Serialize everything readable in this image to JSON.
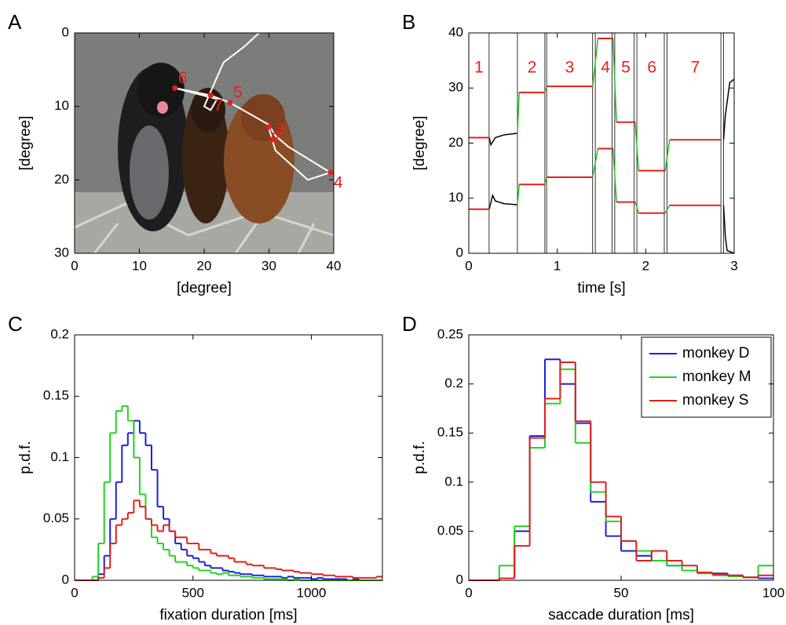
{
  "chart_data": [
    {
      "type": "image",
      "panel": "A",
      "xlabel": "[degree]",
      "ylabel": "[degree]",
      "xlim": [
        0,
        40
      ],
      "ylim": [
        30,
        0
      ],
      "xticks": [
        0,
        10,
        20,
        30,
        40
      ],
      "yticks": [
        0,
        10,
        20,
        30
      ],
      "scanpath": {
        "color": "#ffffff",
        "x": [
          28.5,
          26,
          23,
          21.5,
          20,
          21,
          22,
          15.5,
          21,
          24,
          30,
          31,
          33,
          39.5,
          36,
          31,
          30
        ],
        "y": [
          0,
          2,
          4,
          7,
          10,
          10.5,
          9,
          7.5,
          8.5,
          9.5,
          12.5,
          14,
          15.5,
          19,
          20,
          16,
          13
        ]
      },
      "fixation_color": "#e8201a",
      "fixations": [
        {
          "label": "6",
          "x": 15.5,
          "y": 7.5
        },
        {
          "label": "7",
          "x": 21,
          "y": 8.5
        },
        {
          "label": "5",
          "x": 24,
          "y": 9.5
        },
        {
          "label": "2",
          "x": 30,
          "y": 12.8
        },
        {
          "label": "3",
          "x": 30.5,
          "y": 14.5
        },
        {
          "label": "4",
          "x": 39.5,
          "y": 19
        }
      ]
    },
    {
      "type": "line",
      "panel": "B",
      "xlabel": "time [s]",
      "ylabel": "[degree]",
      "xlim": [
        0,
        3
      ],
      "ylim": [
        0,
        40
      ],
      "xticks": [
        0,
        1,
        2,
        3
      ],
      "yticks": [
        0,
        10,
        20,
        30,
        40
      ],
      "vlines": [
        0.23,
        0.55,
        0.86,
        0.88,
        1.4,
        1.43,
        1.62,
        1.65,
        1.87,
        1.9,
        2.21,
        2.24,
        2.85,
        2.88
      ],
      "series": [
        {
          "color": "#000000",
          "x": [
            0.23,
            0.25,
            0.3,
            0.4,
            0.55
          ],
          "values": [
            21,
            19.7,
            21,
            21.5,
            21.8
          ]
        },
        {
          "color": "#000000",
          "x": [
            0.23,
            0.27,
            0.3,
            0.4,
            0.55
          ],
          "values": [
            8,
            10.5,
            9.5,
            9,
            8.8
          ]
        },
        {
          "color": "#000000",
          "x": [
            2.88,
            2.9,
            2.95,
            3
          ],
          "values": [
            20.6,
            25,
            31,
            31.6
          ]
        },
        {
          "color": "#000000",
          "x": [
            2.88,
            2.9,
            2.92,
            3
          ],
          "values": [
            8.7,
            3,
            0.5,
            0
          ]
        },
        {
          "color": "#22c322",
          "x": [
            0.55,
            0.57,
            0.86,
            0.88,
            1.4,
            1.46,
            1.63,
            1.67,
            1.88,
            1.92,
            2.22,
            2.27
          ],
          "values": [
            21.8,
            29.2,
            29.2,
            30.3,
            30.3,
            39,
            39,
            23.8,
            23.8,
            15,
            15,
            20.6
          ]
        },
        {
          "color": "#22c322",
          "x": [
            0.55,
            0.57,
            0.86,
            0.88,
            1.4,
            1.46,
            1.63,
            1.67,
            1.88,
            1.92,
            2.22,
            2.27
          ],
          "values": [
            8.8,
            12.5,
            12.5,
            13.8,
            13.8,
            19,
            19,
            9.3,
            9.3,
            7.3,
            7.3,
            8.7
          ]
        }
      ],
      "fixation_color": "#e8201a",
      "fixations": [
        {
          "label": "1",
          "start": 0,
          "end": 0.23,
          "h": 21,
          "v": 8
        },
        {
          "label": "2",
          "start": 0.57,
          "end": 0.86,
          "h": 29.2,
          "v": 12.5
        },
        {
          "label": "3",
          "start": 0.88,
          "end": 1.4,
          "h": 30.3,
          "v": 13.8
        },
        {
          "label": "4",
          "start": 1.46,
          "end": 1.63,
          "h": 39,
          "v": 19
        },
        {
          "label": "5",
          "start": 1.67,
          "end": 1.88,
          "h": 23.8,
          "v": 9.3
        },
        {
          "label": "6",
          "start": 1.92,
          "end": 2.22,
          "h": 15,
          "v": 7.3
        },
        {
          "label": "7",
          "start": 2.27,
          "end": 2.85,
          "h": 20.6,
          "v": 8.7
        }
      ]
    },
    {
      "type": "histogram",
      "panel": "C",
      "xlabel": "fixation duration [ms]",
      "ylabel": "p.d.f.",
      "xlim": [
        0,
        1300
      ],
      "ylim": [
        0,
        0.2
      ],
      "xticks": [
        0,
        500,
        1000
      ],
      "yticks": [
        0,
        0.05,
        0.1,
        0.15,
        0.2
      ],
      "bins": [
        0,
        25,
        50,
        75,
        100,
        125,
        150,
        175,
        200,
        225,
        250,
        275,
        300,
        325,
        350,
        375,
        400,
        425,
        450,
        475,
        500,
        525,
        550,
        575,
        600,
        625,
        650,
        675,
        700,
        725,
        750,
        775,
        800,
        825,
        850,
        875,
        900,
        925,
        950,
        975,
        1000,
        1025,
        1050,
        1075,
        1100,
        1125,
        1150,
        1175,
        1200,
        1225,
        1250,
        1275,
        1300
      ],
      "series": [
        {
          "color": "#1f1fdc",
          "values": [
            0,
            0,
            0,
            0,
            0.005,
            0.02,
            0.05,
            0.08,
            0.11,
            0.12,
            0.13,
            0.12,
            0.11,
            0.09,
            0.06,
            0.05,
            0.04,
            0.03,
            0.025,
            0.02,
            0.018,
            0.015,
            0.012,
            0.01,
            0.01,
            0.008,
            0.007,
            0.006,
            0.005,
            0.005,
            0.004,
            0.004,
            0.003,
            0.003,
            0.003,
            0.002,
            0.003,
            0.002,
            0.002,
            0.002,
            0.001,
            0.002,
            0.001,
            0.001,
            0.001,
            0.001,
            0,
            0.001,
            0,
            0,
            0,
            0
          ]
        },
        {
          "color": "#22d322",
          "values": [
            0,
            0,
            0,
            0.003,
            0.03,
            0.08,
            0.12,
            0.138,
            0.142,
            0.13,
            0.1,
            0.07,
            0.05,
            0.035,
            0.03,
            0.025,
            0.02,
            0.015,
            0.015,
            0.012,
            0.01,
            0.008,
            0.008,
            0.006,
            0.005,
            0.006,
            0.004,
            0.004,
            0.003,
            0.003,
            0.002,
            0.002,
            0.001,
            0.001,
            0.001,
            0.001,
            0,
            0.001,
            0,
            0,
            0,
            0,
            0,
            0,
            0,
            0,
            0,
            0,
            0,
            0,
            0,
            0
          ]
        },
        {
          "color": "#e0201a",
          "values": [
            0,
            0,
            0,
            0,
            0.002,
            0.01,
            0.03,
            0.045,
            0.05,
            0.055,
            0.065,
            0.06,
            0.05,
            0.045,
            0.04,
            0.045,
            0.04,
            0.035,
            0.035,
            0.03,
            0.03,
            0.025,
            0.025,
            0.022,
            0.02,
            0.02,
            0.018,
            0.015,
            0.015,
            0.013,
            0.012,
            0.012,
            0.01,
            0.01,
            0.009,
            0.008,
            0.008,
            0.007,
            0.006,
            0.006,
            0.005,
            0.005,
            0.004,
            0.004,
            0.003,
            0.003,
            0.003,
            0.002,
            0.002,
            0.002,
            0.002,
            0.003
          ]
        }
      ]
    },
    {
      "type": "histogram",
      "panel": "D",
      "xlabel": "saccade duration [ms]",
      "ylabel": "p.d.f.",
      "xlim": [
        0,
        100
      ],
      "ylim": [
        0,
        0.25
      ],
      "xticks": [
        0,
        50,
        100
      ],
      "yticks": [
        0,
        0.05,
        0.1,
        0.15,
        0.2,
        0.25
      ],
      "legend": "upper right",
      "bins": [
        0,
        5,
        10,
        15,
        20,
        25,
        30,
        35,
        40,
        45,
        50,
        55,
        60,
        65,
        70,
        75,
        80,
        85,
        90,
        95,
        100
      ],
      "series": [
        {
          "name": "monkey D",
          "color": "#1f1fdc",
          "values": [
            0,
            0,
            0.002,
            0.05,
            0.147,
            0.225,
            0.2,
            0.16,
            0.08,
            0.045,
            0.03,
            0.025,
            0.02,
            0.015,
            0.01,
            0.008,
            0.007,
            0.005,
            0.003,
            0.002
          ]
        },
        {
          "name": "monkey M",
          "color": "#22d322",
          "values": [
            0,
            0,
            0.015,
            0.055,
            0.135,
            0.18,
            0.215,
            0.14,
            0.09,
            0.06,
            0.04,
            0.03,
            0.02,
            0.015,
            0.01,
            0.007,
            0.005,
            0.004,
            0.003,
            0.015
          ]
        },
        {
          "name": "monkey S",
          "color": "#e0201a",
          "values": [
            0,
            0,
            0.002,
            0.035,
            0.145,
            0.185,
            0.222,
            0.162,
            0.1,
            0.065,
            0.04,
            0.02,
            0.03,
            0.02,
            0.015,
            0.008,
            0.006,
            0.005,
            0.003,
            0.005
          ]
        }
      ]
    }
  ]
}
